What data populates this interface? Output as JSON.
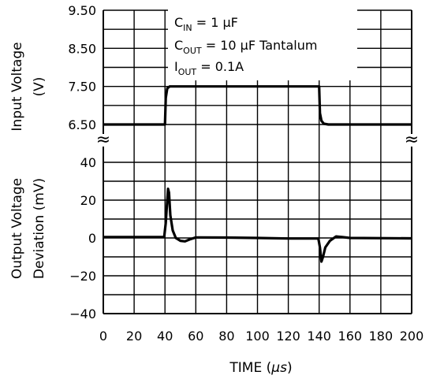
{
  "chart_data": {
    "type": "line",
    "x_axis": {
      "label": "TIME (",
      "label_unit": "μs",
      "label_close": ")",
      "range": [
        0,
        200
      ],
      "ticks": [
        0,
        20,
        40,
        60,
        80,
        100,
        120,
        140,
        160,
        180,
        200
      ],
      "tick_labels": [
        "0",
        "20",
        "40",
        "60",
        "80",
        "100",
        "120",
        "140",
        "160",
        "180",
        "200"
      ]
    },
    "top_panel": {
      "ylabel_line1": "Input Voltage",
      "ylabel_line2": "(V)",
      "ylim": [
        6.5,
        9.5
      ],
      "tick_labels": [
        "9.50",
        "8.50",
        "7.50",
        "6.50"
      ],
      "tick_values": [
        9.5,
        8.5,
        7.5,
        6.5
      ],
      "series": [
        {
          "values": [
            [
              0,
              6.5
            ],
            [
              40,
              6.5
            ],
            [
              40.5,
              7.2
            ],
            [
              41.5,
              7.45
            ],
            [
              43,
              7.5
            ],
            [
              60,
              7.5
            ],
            [
              100,
              7.5
            ],
            [
              140,
              7.5
            ],
            [
              140.5,
              6.8
            ],
            [
              141.5,
              6.6
            ],
            [
              143,
              6.52
            ],
            [
              146,
              6.5
            ],
            [
              200,
              6.5
            ]
          ]
        }
      ]
    },
    "bottom_panel": {
      "ylabel_line1": "Output Voltage",
      "ylabel_line2": "Deviation (mV)",
      "ylim": [
        -40,
        40
      ],
      "tick_labels": [
        "40",
        "20",
        "0",
        "-20",
        "-40"
      ],
      "tick_values": [
        40,
        20,
        0,
        -20,
        -40
      ],
      "series": [
        {
          "values": [
            [
              0,
              0.5
            ],
            [
              39.5,
              0.5
            ],
            [
              40.5,
              8
            ],
            [
              41.5,
              20
            ],
            [
              42,
              26
            ],
            [
              42.6,
              24
            ],
            [
              43.5,
              12
            ],
            [
              45,
              4
            ],
            [
              47,
              0
            ],
            [
              50,
              -1.5
            ],
            [
              53,
              -1.8
            ],
            [
              56,
              -0.8
            ],
            [
              60,
              0.3
            ],
            [
              80,
              0.2
            ],
            [
              100,
              0
            ],
            [
              120,
              -0.3
            ],
            [
              139.5,
              -0.3
            ],
            [
              140.5,
              -5
            ],
            [
              141.5,
              -12.5
            ],
            [
              142.5,
              -10
            ],
            [
              144,
              -5
            ],
            [
              147,
              -1.5
            ],
            [
              151,
              0.8
            ],
            [
              155,
              0.5
            ],
            [
              160,
              0
            ],
            [
              200,
              -0.2
            ]
          ]
        }
      ]
    },
    "annotations": {
      "cin_main": "C",
      "cin_sub": "IN",
      "cin_rest": " = 1 μF",
      "cout_main": "C",
      "cout_sub": "OUT",
      "cout_rest": " = 10 μF Tantalum",
      "iout_main": "I",
      "iout_sub": "OUT",
      "iout_rest": " = 0.1A"
    },
    "axis_break_symbol": "≈",
    "grid": true,
    "line_color": "#000000"
  }
}
